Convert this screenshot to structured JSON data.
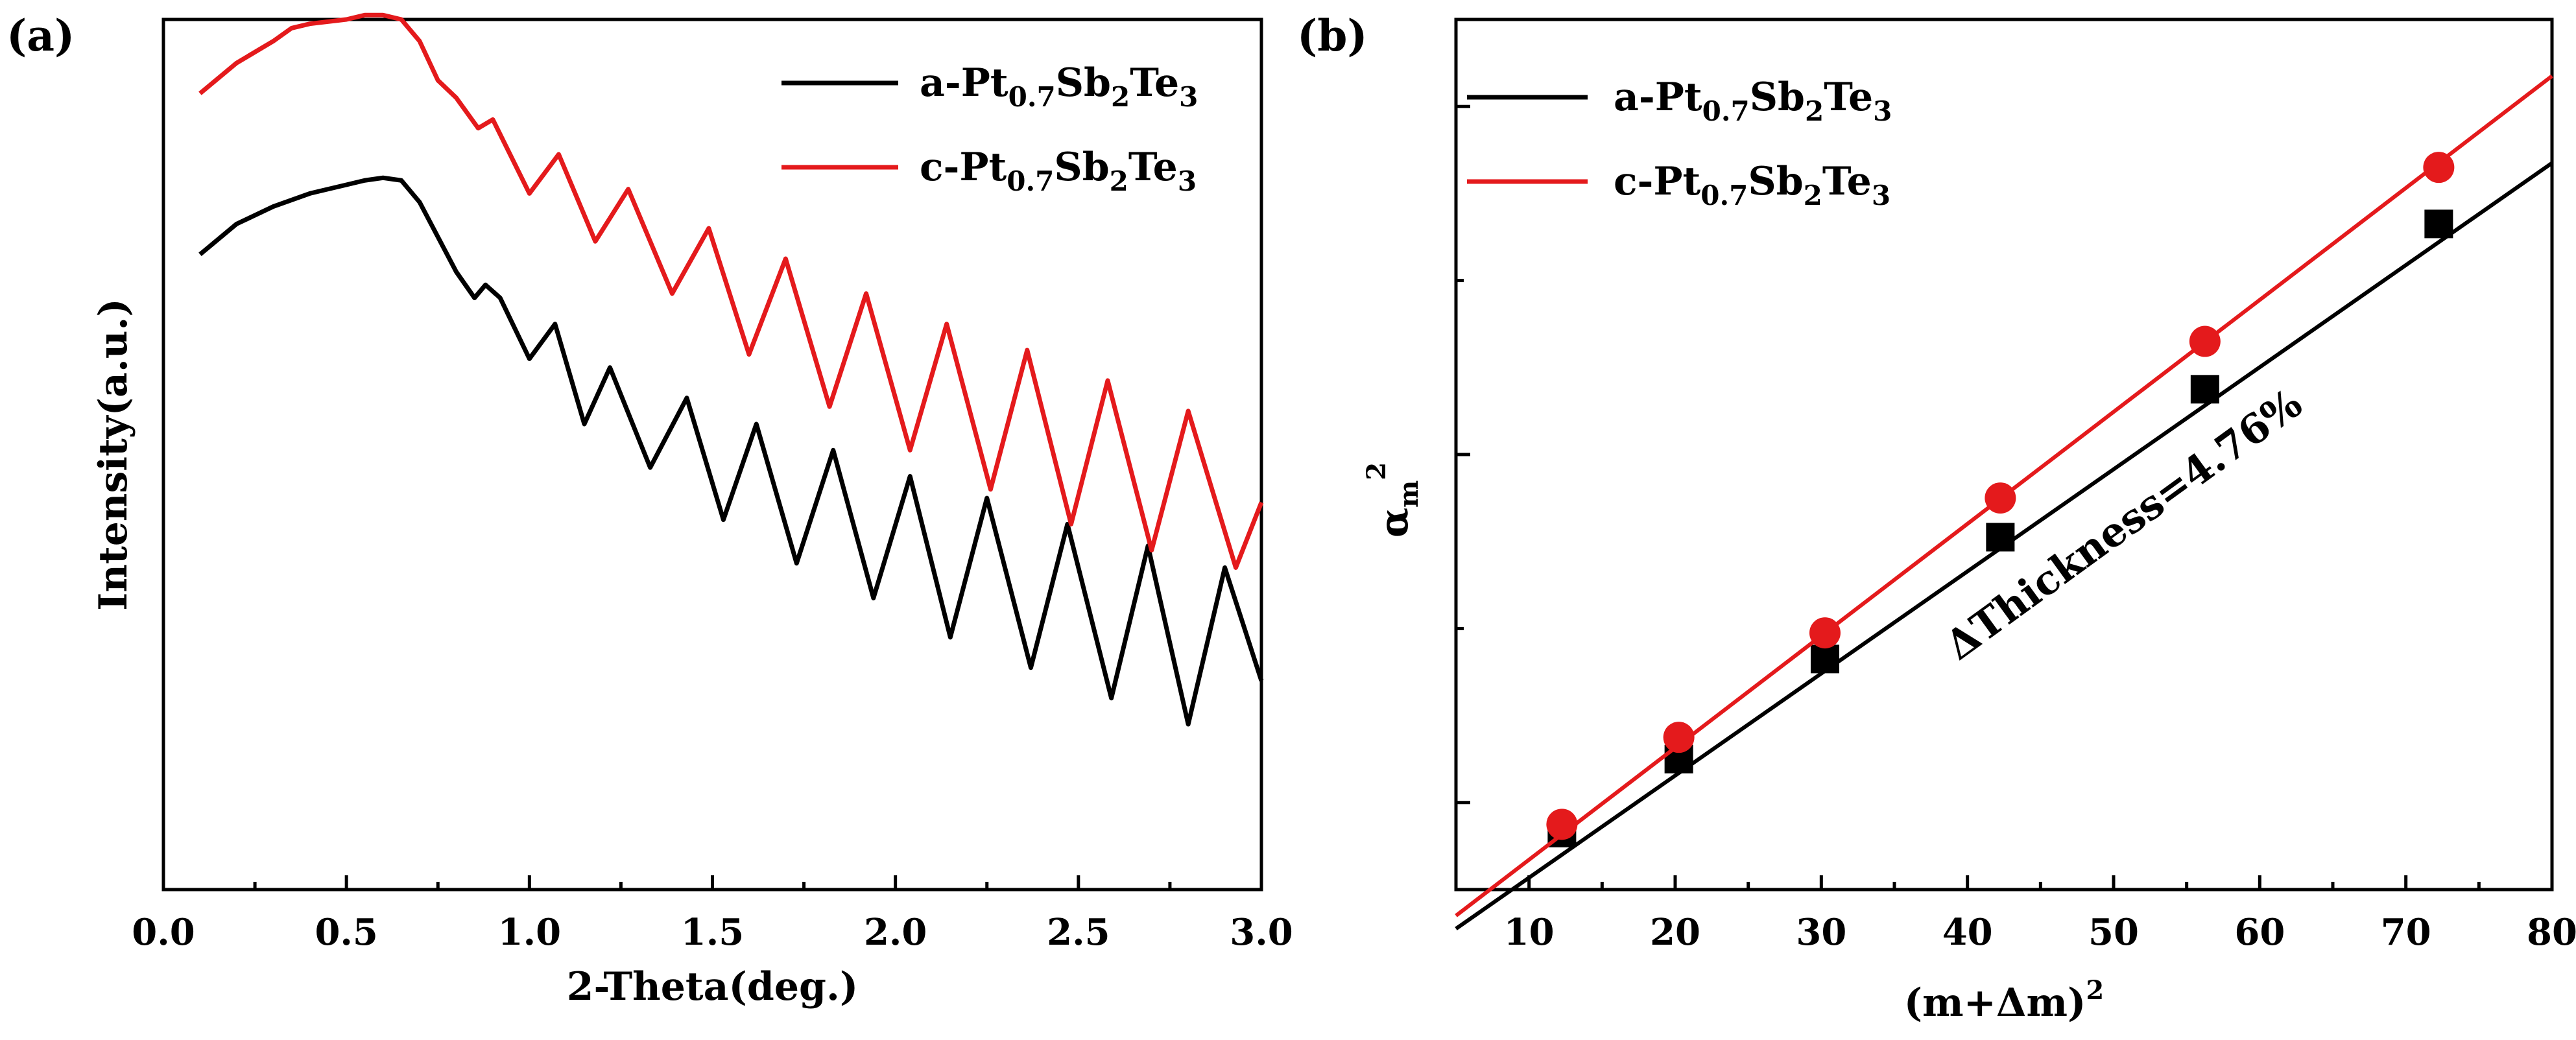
{
  "chart_data": [
    {
      "type": "line",
      "panel_label": "(a)",
      "title": "",
      "xlabel": "2-Theta(deg.)",
      "ylabel": "Intensity(a.u.)",
      "xlim": [
        0.0,
        3.0
      ],
      "ylim": [
        0,
        100
      ],
      "x_tick_values": [
        0.0,
        0.5,
        1.0,
        1.5,
        2.0,
        2.5,
        3.0
      ],
      "x_tick_labels": [
        "0.0",
        "0.5",
        "1.0",
        "1.5",
        "2.0",
        "2.5",
        "3.0"
      ],
      "y_ticks_shown": false,
      "legend": [
        {
          "name": "a-Pt0.7Sb2Te3",
          "prefix": "a-Pt",
          "sub1": "0.7",
          "mid": "Sb",
          "sub2": "2",
          "mid2": "Te",
          "sub3": "3",
          "color": "#000000"
        },
        {
          "name": "c-Pt0.7Sb2Te3",
          "prefix": "c-Pt",
          "sub1": "0.7",
          "mid": "Sb",
          "sub2": "2",
          "mid2": "Te",
          "sub3": "3",
          "color": "#e41a1c"
        }
      ],
      "legend_position": "top-right",
      "series": [
        {
          "name": "a-Pt0.7Sb2Te3",
          "color": "#000000",
          "x": [
            0.1,
            0.2,
            0.3,
            0.4,
            0.5,
            0.55,
            0.6,
            0.65,
            0.7,
            0.75,
            0.8,
            0.85,
            0.88,
            0.92,
            1.0,
            1.07,
            1.15,
            1.22,
            1.33,
            1.43,
            1.53,
            1.62,
            1.73,
            1.83,
            1.94,
            2.04,
            2.15,
            2.25,
            2.37,
            2.47,
            2.59,
            2.69,
            2.8,
            2.9,
            3.0
          ],
          "y": [
            73.0,
            76.5,
            78.5,
            80.0,
            81.0,
            81.5,
            81.8,
            81.5,
            79.0,
            75.0,
            71.0,
            68.0,
            69.5,
            68.0,
            61.0,
            65.0,
            53.5,
            60.0,
            48.5,
            56.5,
            42.5,
            53.5,
            37.5,
            50.5,
            33.5,
            47.5,
            29.0,
            45.0,
            25.5,
            42.0,
            22.0,
            39.5,
            19.0,
            37.0,
            24.0
          ]
        },
        {
          "name": "c-Pt0.7Sb2Te3",
          "color": "#e41a1c",
          "x": [
            0.1,
            0.2,
            0.3,
            0.35,
            0.4,
            0.5,
            0.55,
            0.6,
            0.65,
            0.7,
            0.75,
            0.8,
            0.86,
            0.9,
            1.0,
            1.08,
            1.18,
            1.27,
            1.39,
            1.49,
            1.6,
            1.7,
            1.82,
            1.92,
            2.04,
            2.14,
            2.26,
            2.36,
            2.48,
            2.58,
            2.7,
            2.8,
            2.93,
            3.0
          ],
          "y": [
            91.5,
            95.0,
            97.5,
            99.0,
            99.5,
            100.0,
            100.5,
            100.5,
            100.0,
            97.5,
            93.0,
            91.0,
            87.5,
            88.5,
            80.0,
            84.5,
            74.5,
            80.5,
            68.5,
            76.0,
            61.5,
            72.5,
            55.5,
            68.5,
            50.5,
            65.0,
            46.0,
            62.0,
            42.0,
            58.5,
            39.0,
            55.0,
            37.0,
            44.5
          ]
        }
      ]
    },
    {
      "type": "scatter",
      "panel_label": "(b)",
      "title": "",
      "xlabel": "(m+Δm)",
      "xlabel_sup": "2",
      "ylabel_base": "α",
      "ylabel_sub": "m",
      "ylabel_sup": "2",
      "xlim": [
        5,
        80
      ],
      "ylim": [
        0,
        100
      ],
      "x_tick_values": [
        10,
        20,
        30,
        40,
        50,
        60,
        70,
        80
      ],
      "x_tick_labels": [
        "10",
        "20",
        "30",
        "40",
        "50",
        "60",
        "70",
        "80"
      ],
      "y_ticks_shown": true,
      "y_tick_values": [
        10,
        30,
        50,
        70,
        90
      ],
      "annotation": "ΔThickness=4.76%",
      "legend": [
        {
          "name": "a-Pt0.7Sb2Te3",
          "prefix": "a-Pt",
          "sub1": "0.7",
          "mid": "Sb",
          "sub2": "2",
          "mid2": "Te",
          "sub3": "3",
          "color": "#000000",
          "marker": "square"
        },
        {
          "name": "c-Pt0.7Sb2Te3",
          "prefix": "c-Pt",
          "sub1": "0.7",
          "mid": "Sb",
          "sub2": "2",
          "mid2": "Te",
          "sub3": "3",
          "color": "#e41a1c",
          "marker": "circle"
        }
      ],
      "legend_position": "top-left",
      "series": [
        {
          "name": "a-Pt0.7Sb2Te3",
          "color": "#000000",
          "marker": "square",
          "x": [
            12.25,
            20.25,
            30.25,
            42.25,
            56.25,
            72.25
          ],
          "y": [
            6.5,
            15.0,
            26.5,
            40.5,
            57.5,
            76.5
          ],
          "fit": {
            "x": [
              5,
              80
            ],
            "y": [
              -4.5,
              83.5
            ]
          }
        },
        {
          "name": "c-Pt0.7Sb2Te3",
          "color": "#e41a1c",
          "marker": "circle",
          "x": [
            12.25,
            20.25,
            30.25,
            42.25,
            56.25,
            72.25
          ],
          "y": [
            7.5,
            17.5,
            29.5,
            45.0,
            63.0,
            83.0
          ],
          "fit": {
            "x": [
              5,
              80
            ],
            "y": [
              -3.0,
              93.5
            ]
          }
        }
      ]
    }
  ]
}
